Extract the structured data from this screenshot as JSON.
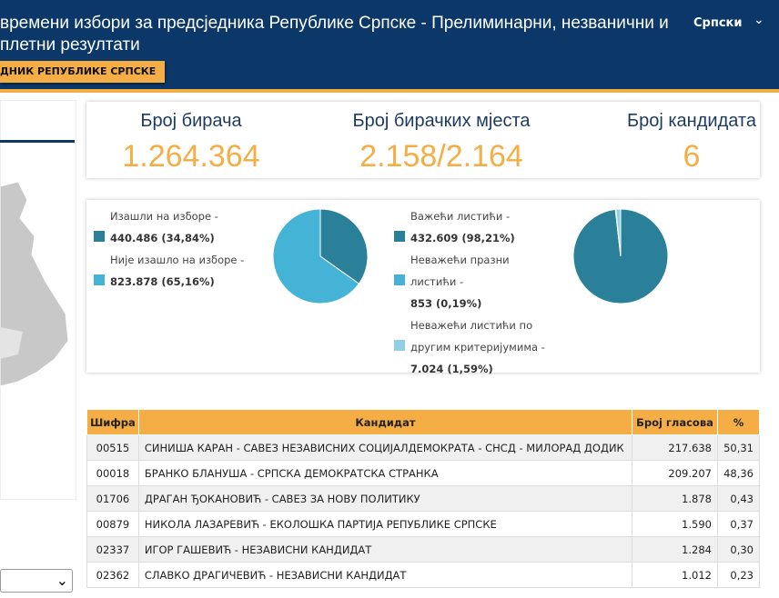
{
  "header": {
    "title_lines": [
      "времени избори за предсједника Републике Српске - Прелиминарни, незванични и",
      "плетни резултати"
    ],
    "language": "Српски",
    "tab": "ДНИК РЕПУБЛИКЕ СРПСКЕ"
  },
  "stats": [
    {
      "label": "Број бирача",
      "value": "1.264.364"
    },
    {
      "label": "Број бирачких мјеста",
      "value": "2.158/2.164"
    },
    {
      "label": "Број кандидата",
      "value": "6"
    }
  ],
  "turnout_chart": {
    "type": "pie",
    "items": [
      {
        "label": "Изашли на изборе -",
        "value_label": "440.486 (34,84%)",
        "value": 34.84,
        "color": "#2a7f99"
      },
      {
        "label": "Није изашло на изборе -",
        "value_label": "823.878 (65,16%)",
        "value": 65.16,
        "color": "#45b3d6"
      }
    ]
  },
  "ballots_chart": {
    "type": "pie",
    "items": [
      {
        "label": "Важећи листићи -",
        "value_label": "432.609 (98,21%)",
        "value": 98.21,
        "color": "#2a7f99"
      },
      {
        "label": "Неважећи празни листићи -",
        "value_label": "853 (0,19%)",
        "value": 0.19,
        "color": "#45b3d6"
      },
      {
        "label": "Неважећи листићи по другим критеријумима -",
        "value_label": "7.024 (1,59%)",
        "value": 1.59,
        "color": "#8fd0e6"
      }
    ]
  },
  "table": {
    "headers": [
      "Шифра",
      "Кандидат",
      "Број гласова",
      "%"
    ],
    "rows": [
      [
        "00515",
        "СИНИША КАРАН - САВЕЗ НЕЗАВИСНИХ СОЦИЈАЛДЕМОКРАТА - СНСД - МИЛОРАД ДОДИК",
        "217.638",
        "50,31"
      ],
      [
        "00018",
        "БРАНКО БЛАНУША - СРПСКА ДЕМОКРАТСКА СТРАНКА",
        "209.207",
        "48,36"
      ],
      [
        "01706",
        "ДРАГАН ЂОКАНОВИЋ - САВЕЗ ЗА НОВУ ПОЛИТИКУ",
        "1.878",
        "0,43"
      ],
      [
        "00879",
        "НИКОЛА ЛАЗАРЕВИЋ - ЕКОЛОШКА ПАРТИЈА РЕПУБЛИКЕ СРПСКЕ",
        "1.590",
        "0,37"
      ],
      [
        "02337",
        "ИГОР ГАШЕВИЋ - НЕЗАВИСНИ КАНДИДАТ",
        "1.284",
        "0,30"
      ],
      [
        "02362",
        "СЛАВКО ДРАГИЧЕВИЋ - НЕЗАВИСНИ КАНДИДАТ",
        "1.012",
        "0,23"
      ]
    ]
  }
}
